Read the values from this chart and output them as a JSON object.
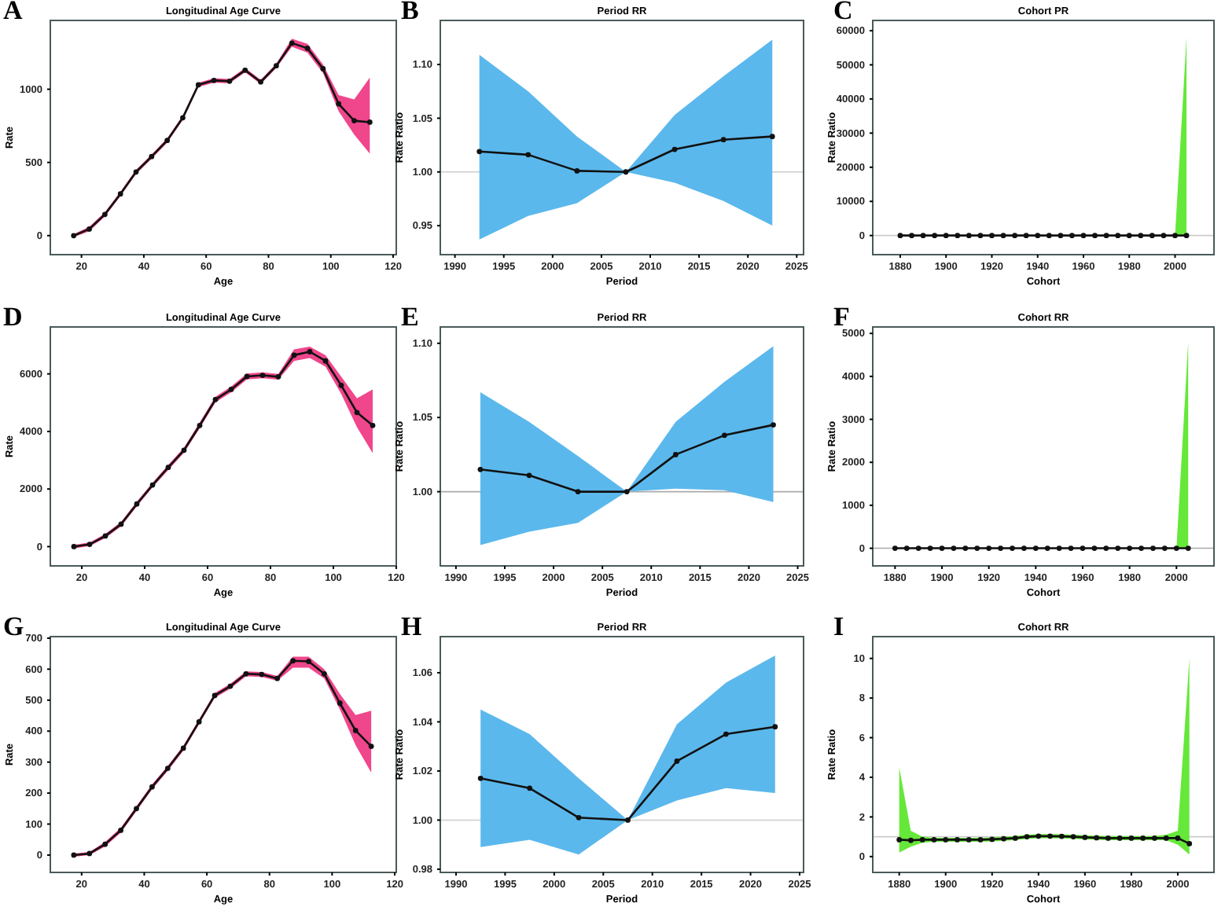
{
  "chart_data": [
    {
      "type": "line",
      "title": "Longitudinal Age Curve",
      "xlabel": "Age",
      "ylabel": "Rate",
      "annotations": [
        "A"
      ],
      "marker": "circle",
      "x": [
        17.5,
        22.5,
        27.5,
        32.5,
        37.5,
        42.5,
        47.5,
        52.5,
        57.5,
        62.5,
        67.5,
        72.5,
        77.5,
        82.5,
        87.5,
        92.5,
        97.5,
        102.5,
        107.5,
        112.5
      ],
      "xlim": [
        10,
        121
      ],
      "xticks": [
        20,
        40,
        60,
        80,
        100,
        120
      ],
      "ylim": [
        -130,
        1470
      ],
      "yticks": [
        0,
        500,
        1000
      ],
      "series": [
        {
          "color": "#111111",
          "values": [
            0,
            45,
            145,
            285,
            435,
            540,
            650,
            805,
            1030,
            1060,
            1055,
            1130,
            1050,
            1160,
            1315,
            1280,
            1140,
            900,
            785,
            775
          ],
          "lower": [
            -10,
            30,
            130,
            270,
            420,
            525,
            635,
            790,
            1015,
            1045,
            1040,
            1115,
            1035,
            1145,
            1290,
            1250,
            1110,
            850,
            690,
            560
          ],
          "upper": [
            10,
            60,
            160,
            300,
            450,
            555,
            665,
            820,
            1045,
            1075,
            1070,
            1145,
            1065,
            1175,
            1345,
            1310,
            1170,
            960,
            930,
            1080
          ]
        }
      ]
    },
    {
      "type": "line",
      "title": "Period RR",
      "xlabel": "Period",
      "ylabel": "Rate Ratio",
      "annotations": [
        "B"
      ],
      "marker": "circle",
      "x": [
        1992.5,
        1997.5,
        2002.5,
        2007.5,
        2012.5,
        2017.5,
        2022.5
      ],
      "xlim": [
        1988.5,
        2025.7
      ],
      "xticks": [
        1990,
        1995,
        2000,
        2005,
        2010,
        2015,
        2020,
        2025
      ],
      "ylim": [
        0.923,
        1.141
      ],
      "yticks": [
        {
          "value": 0.95,
          "label": "0.95"
        },
        {
          "value": 1,
          "label": "1.00"
        },
        {
          "value": 1.05,
          "label": "1.05"
        },
        {
          "value": 1.1,
          "label": "1.10"
        }
      ],
      "ref_lines": [
        {
          "axis": "y",
          "value": 1,
          "color": "#cccccc"
        }
      ],
      "series": [
        {
          "color": "#111111",
          "values": [
            1.019,
            1.016,
            1.001,
            1.0,
            1.021,
            1.03,
            1.033
          ],
          "lower": [
            0.937,
            0.959,
            0.971,
            1.0,
            0.99,
            0.973,
            0.95
          ],
          "upper": [
            1.109,
            1.075,
            1.033,
            1.0,
            1.053,
            1.089,
            1.123
          ]
        }
      ]
    },
    {
      "type": "line",
      "title": "Cohort PR",
      "xlabel": "Cohort",
      "ylabel": "Rate Ratio",
      "annotations": [
        "C"
      ],
      "marker": "circle",
      "x": [
        1880,
        1885,
        1890,
        1895,
        1900,
        1905,
        1910,
        1915,
        1920,
        1925,
        1930,
        1935,
        1940,
        1945,
        1950,
        1955,
        1960,
        1965,
        1970,
        1975,
        1980,
        1985,
        1990,
        1995,
        2000,
        2005
      ],
      "xlim": [
        1868,
        2017
      ],
      "xticks": [
        1880,
        1900,
        1920,
        1940,
        1960,
        1980,
        2000
      ],
      "ylim": [
        -5600,
        63000
      ],
      "yticks": [
        0,
        10000,
        20000,
        30000,
        40000,
        50000,
        60000
      ],
      "ref_lines": [
        {
          "axis": "y",
          "value": 1,
          "color": "#cccccc"
        }
      ],
      "series": [
        {
          "color": "#111111",
          "values": [
            1,
            1,
            1,
            1,
            1,
            1,
            1,
            1,
            1,
            1,
            1,
            1,
            1,
            1,
            1,
            1,
            1,
            1,
            1,
            1,
            1,
            1,
            1,
            1,
            1,
            1
          ],
          "lower": [
            1,
            1,
            1,
            1,
            1,
            1,
            1,
            1,
            1,
            1,
            1,
            1,
            1,
            1,
            1,
            1,
            1,
            1,
            1,
            1,
            1,
            1,
            1,
            1,
            1,
            0
          ],
          "upper": [
            1,
            1,
            1,
            1,
            1,
            1,
            1,
            1,
            1,
            1,
            1,
            1,
            1,
            1,
            1,
            1,
            1,
            1,
            1,
            1,
            1,
            1,
            1,
            1,
            1,
            58000
          ]
        }
      ]
    },
    {
      "type": "line",
      "title": "Longitudinal Age Curve",
      "xlabel": "Age",
      "ylabel": "Rate",
      "annotations": [
        "D"
      ],
      "marker": "circle",
      "x": [
        17.5,
        22.5,
        27.5,
        32.5,
        37.5,
        42.5,
        47.5,
        52.5,
        57.5,
        62.5,
        67.5,
        72.5,
        77.5,
        82.5,
        87.5,
        92.5,
        97.5,
        102.5,
        107.5,
        112.5
      ],
      "xlim": [
        10,
        120
      ],
      "xticks": [
        20,
        40,
        60,
        80,
        100,
        120
      ],
      "ylim": [
        -670,
        7630
      ],
      "yticks": [
        0,
        2000,
        4000,
        6000
      ],
      "series": [
        {
          "color": "#111111",
          "values": [
            0,
            80,
            370,
            780,
            1480,
            2140,
            2750,
            3350,
            4210,
            5110,
            5460,
            5910,
            5950,
            5900,
            6650,
            6770,
            6450,
            5600,
            4660,
            4210
          ],
          "lower": [
            -60,
            20,
            300,
            700,
            1400,
            2060,
            2660,
            3260,
            4110,
            5010,
            5360,
            5810,
            5850,
            5800,
            6450,
            6550,
            6250,
            5300,
            4150,
            3250
          ],
          "upper": [
            60,
            140,
            440,
            860,
            1560,
            2220,
            2840,
            3440,
            4310,
            5210,
            5560,
            6010,
            6050,
            6000,
            6850,
            6950,
            6650,
            5900,
            5150,
            5460
          ]
        }
      ]
    },
    {
      "type": "line",
      "title": "Period RR",
      "xlabel": "Period",
      "ylabel": "Rate Ratio",
      "annotations": [
        "E"
      ],
      "marker": "circle",
      "x": [
        1992.5,
        1997.5,
        2002.5,
        2007.5,
        2012.5,
        2017.5,
        2022.5
      ],
      "xlim": [
        1988.4,
        2025.6
      ],
      "xticks": [
        1990,
        1995,
        2000,
        2005,
        2010,
        2015,
        2020,
        2025
      ],
      "ylim": [
        0.95,
        1.111
      ],
      "yticks": [
        {
          "value": 1,
          "label": "1.00"
        },
        {
          "value": 1.05,
          "label": "1.05"
        },
        {
          "value": 1.1,
          "label": "1.10"
        }
      ],
      "ref_lines": [
        {
          "axis": "y",
          "value": 1,
          "color": "#aaaaaa"
        }
      ],
      "series": [
        {
          "color": "#111111",
          "values": [
            1.015,
            1.011,
            1.0,
            1.0,
            1.025,
            1.038,
            1.045
          ],
          "lower": [
            0.964,
            0.973,
            0.979,
            1.0,
            1.002,
            1.001,
            0.993
          ],
          "upper": [
            1.067,
            1.047,
            1.024,
            1.0,
            1.047,
            1.074,
            1.098
          ]
        }
      ]
    },
    {
      "type": "line",
      "title": "Cohort RR",
      "xlabel": "Cohort",
      "ylabel": "Rate Ratio",
      "annotations": [
        "F"
      ],
      "marker": "circle",
      "x": [
        1880,
        1885,
        1890,
        1895,
        1900,
        1905,
        1910,
        1915,
        1920,
        1925,
        1930,
        1935,
        1940,
        1945,
        1950,
        1955,
        1960,
        1965,
        1970,
        1975,
        1980,
        1985,
        1990,
        1995,
        2000,
        2005
      ],
      "xlim": [
        1870.5,
        2016
      ],
      "xticks": [
        1880,
        1900,
        1920,
        1940,
        1960,
        1980,
        2000
      ],
      "ylim": [
        -410,
        5150
      ],
      "yticks": [
        0,
        1000,
        2000,
        3000,
        4000,
        5000
      ],
      "ref_lines": [
        {
          "axis": "y",
          "value": 1,
          "color": "#aaaaaa"
        }
      ],
      "series": [
        {
          "color": "#111111",
          "values": [
            1,
            1,
            1,
            1,
            1,
            1,
            1,
            1,
            1,
            1,
            1,
            1,
            1,
            1,
            1,
            1,
            1,
            1,
            1,
            1,
            1,
            1,
            1,
            1,
            1,
            1
          ],
          "lower": [
            1,
            1,
            1,
            1,
            1,
            1,
            1,
            1,
            1,
            1,
            1,
            1,
            1,
            1,
            1,
            1,
            1,
            1,
            1,
            1,
            1,
            1,
            1,
            1,
            1,
            0
          ],
          "upper": [
            1,
            1,
            1,
            1,
            1,
            1,
            1,
            1,
            1,
            1,
            1,
            1,
            1,
            1,
            1,
            1,
            1,
            1,
            1,
            1,
            1,
            1,
            1,
            1,
            1,
            4800
          ]
        }
      ]
    },
    {
      "type": "line",
      "title": "Longitudinal Age Curve",
      "xlabel": "Age",
      "ylabel": "Rate",
      "annotations": [
        "G"
      ],
      "marker": "circle",
      "x": [
        17.5,
        22.5,
        27.5,
        32.5,
        37.5,
        42.5,
        47.5,
        52.5,
        57.5,
        62.5,
        67.5,
        72.5,
        77.5,
        82.5,
        87.5,
        92.5,
        97.5,
        102.5,
        107.5,
        112.5
      ],
      "xlim": [
        10,
        120.5
      ],
      "xticks": [
        20,
        40,
        60,
        80,
        100,
        120
      ],
      "ylim": [
        -56,
        705
      ],
      "yticks": [
        0,
        100,
        200,
        300,
        400,
        500,
        600,
        700
      ],
      "series": [
        {
          "color": "#111111",
          "values": [
            0,
            5,
            35,
            80,
            150,
            220,
            280,
            345,
            430,
            515,
            545,
            585,
            583,
            570,
            627,
            625,
            585,
            490,
            402,
            351
          ],
          "lower": [
            -5,
            0,
            28,
            72,
            142,
            212,
            272,
            337,
            422,
            507,
            537,
            577,
            575,
            562,
            605,
            605,
            570,
            470,
            355,
            266
          ],
          "upper": [
            5,
            10,
            42,
            88,
            158,
            228,
            288,
            353,
            438,
            523,
            553,
            593,
            591,
            578,
            640,
            640,
            600,
            520,
            452,
            466
          ]
        }
      ]
    },
    {
      "type": "line",
      "title": "Period RR",
      "xlabel": "Period",
      "ylabel": "Rate Ratio",
      "annotations": [
        "H"
      ],
      "marker": "circle",
      "x": [
        1992.5,
        1997.5,
        2002.5,
        2007.5,
        2012.5,
        2017.5,
        2022.5
      ],
      "xlim": [
        1988.4,
        2025.4
      ],
      "xticks": [
        1990,
        1995,
        2000,
        2005,
        2010,
        2015,
        2020,
        2025
      ],
      "ylim": [
        0.9787,
        1.0747
      ],
      "yticks": [
        {
          "value": 0.98,
          "label": "0.98"
        },
        {
          "value": 1,
          "label": "1.00"
        },
        {
          "value": 1.02,
          "label": "1.02"
        },
        {
          "value": 1.04,
          "label": "1.04"
        },
        {
          "value": 1.06,
          "label": "1.06"
        }
      ],
      "ref_lines": [
        {
          "axis": "y",
          "value": 1,
          "color": "#cccccc"
        }
      ],
      "series": [
        {
          "color": "#111111",
          "values": [
            1.017,
            1.013,
            1.001,
            1.0,
            1.024,
            1.035,
            1.038
          ],
          "lower": [
            0.989,
            0.992,
            0.986,
            1.0,
            1.008,
            1.013,
            1.011
          ],
          "upper": [
            1.045,
            1.035,
            1.017,
            1.0,
            1.039,
            1.056,
            1.067
          ]
        }
      ]
    },
    {
      "type": "line",
      "title": "Cohort RR",
      "xlabel": "Cohort",
      "ylabel": "Rate Ratio",
      "annotations": [
        "I"
      ],
      "marker": "circle",
      "x": [
        1880,
        1885,
        1890,
        1895,
        1900,
        1905,
        1910,
        1915,
        1920,
        1925,
        1930,
        1935,
        1940,
        1945,
        1950,
        1955,
        1960,
        1965,
        1970,
        1975,
        1980,
        1985,
        1990,
        1995,
        2000,
        2005
      ],
      "xlim": [
        1868.6,
        2015.6
      ],
      "xticks": [
        1880,
        1900,
        1920,
        1940,
        1960,
        1980,
        2000
      ],
      "ylim": [
        -0.8,
        11.1
      ],
      "yticks": [
        0,
        2,
        4,
        6,
        8,
        10
      ],
      "ref_lines": [
        {
          "axis": "y",
          "value": 1,
          "color": "#cccccc"
        }
      ],
      "series": [
        {
          "color": "#111111",
          "values": [
            0.85,
            0.82,
            0.85,
            0.85,
            0.85,
            0.85,
            0.85,
            0.85,
            0.87,
            0.9,
            0.93,
            1.0,
            1.03,
            1.03,
            1.02,
            1.0,
            0.97,
            0.95,
            0.93,
            0.93,
            0.93,
            0.93,
            0.93,
            0.93,
            0.93,
            0.65
          ],
          "lower": [
            0.2,
            0.5,
            0.7,
            0.75,
            0.75,
            0.75,
            0.75,
            0.75,
            0.77,
            0.8,
            0.83,
            0.9,
            0.93,
            0.93,
            0.92,
            0.9,
            0.87,
            0.85,
            0.83,
            0.83,
            0.83,
            0.83,
            0.83,
            0.83,
            0.6,
            0.1
          ],
          "upper": [
            4.5,
            1.3,
            1.0,
            0.95,
            0.95,
            0.95,
            0.95,
            0.95,
            0.97,
            1.0,
            1.03,
            1.1,
            1.13,
            1.13,
            1.12,
            1.1,
            1.07,
            1.05,
            1.03,
            1.03,
            1.03,
            1.03,
            1.03,
            1.1,
            1.3,
            10
          ]
        }
      ]
    }
  ]
}
